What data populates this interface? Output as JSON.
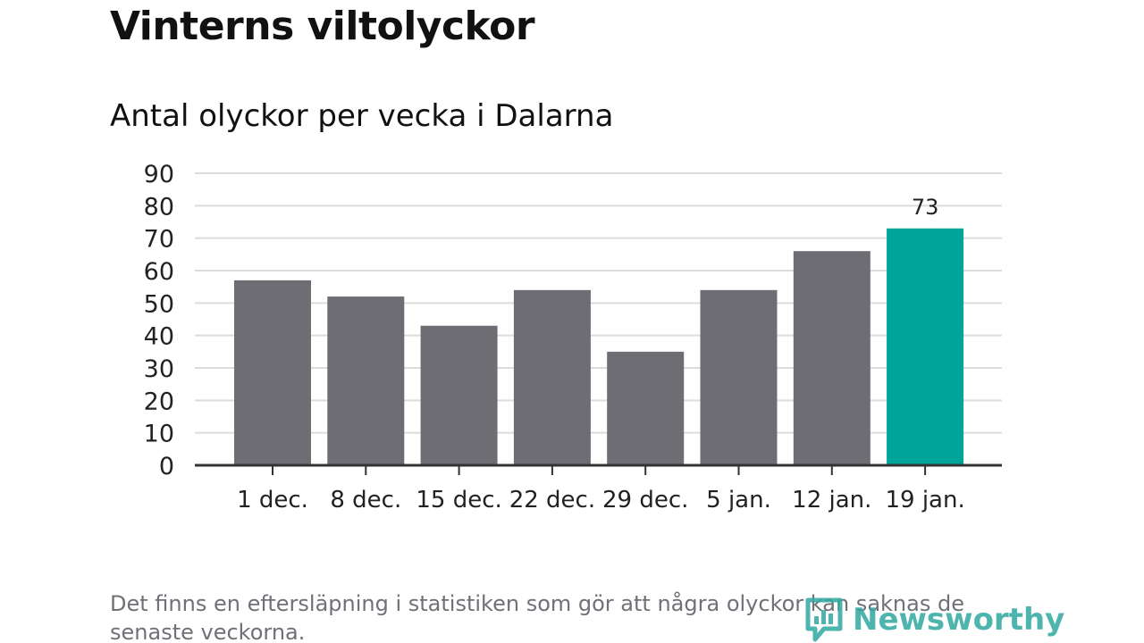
{
  "header": {
    "title": "Vinterns viltolyckor",
    "subtitle": "Antal olyckor per vecka i Dalarna"
  },
  "chart_data": {
    "type": "bar",
    "categories": [
      "1 dec.",
      "8 dec.",
      "15 dec.",
      "22 dec.",
      "29 dec.",
      "5 jan.",
      "12 jan.",
      "19 jan."
    ],
    "values": [
      57,
      52,
      43,
      54,
      35,
      54,
      66,
      73
    ],
    "yticks": [
      "0",
      "10",
      "20",
      "30",
      "40",
      "50",
      "60",
      "70",
      "80",
      "90"
    ],
    "ylim": [
      0,
      90
    ],
    "grid": true,
    "highlight_index": 7,
    "highlight_label": "73",
    "colors": {
      "bar": "#6e6d74",
      "highlight": "#00a59a",
      "grid": "#dcdcdc",
      "axis": "#333333"
    }
  },
  "footer": {
    "note": "Det finns en eftersläpning i statistiken som gör att några olyckor kan saknas de senaste veckorna.",
    "brand": "Newsworthy",
    "brand_icon": "newsworthy-logo-icon"
  }
}
